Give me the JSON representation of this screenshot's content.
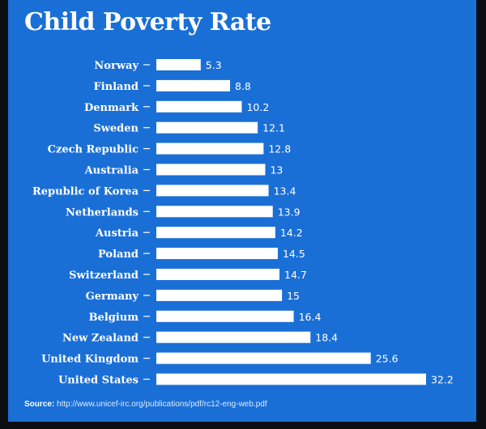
{
  "chart_data": {
    "type": "bar",
    "title": "Child Poverty Rate",
    "categories": [
      "Norway",
      "Finland",
      "Denmark",
      "Sweden",
      "Czech Republic",
      "Australia",
      "Republic of Korea",
      "Netherlands",
      "Austria",
      "Poland",
      "Switzerland",
      "Germany",
      "Belgium",
      "New Zealand",
      "United Kingdom",
      "United States"
    ],
    "values": [
      5.3,
      8.8,
      10.2,
      12.1,
      12.8,
      13,
      13.4,
      13.9,
      14.2,
      14.5,
      14.7,
      15,
      16.4,
      18.4,
      25.6,
      32.2
    ],
    "value_labels": [
      "5.3",
      "8.8",
      "10.2",
      "12.1",
      "12.8",
      "13",
      "13.4",
      "13.9",
      "14.2",
      "14.5",
      "14.7",
      "15",
      "16.4",
      "18.4",
      "25.6",
      "32.2"
    ],
    "orientation": "horizontal",
    "xlim": [
      0,
      32.2
    ],
    "grid": false
  },
  "source": {
    "label": "Source:",
    "url": "http://www.unicef-irc.org/publications/pdf/rc12-eng-web.pdf"
  },
  "colors": {
    "background": "#1a6fd6",
    "bar": "#ffffff",
    "text": "#ffffff"
  }
}
